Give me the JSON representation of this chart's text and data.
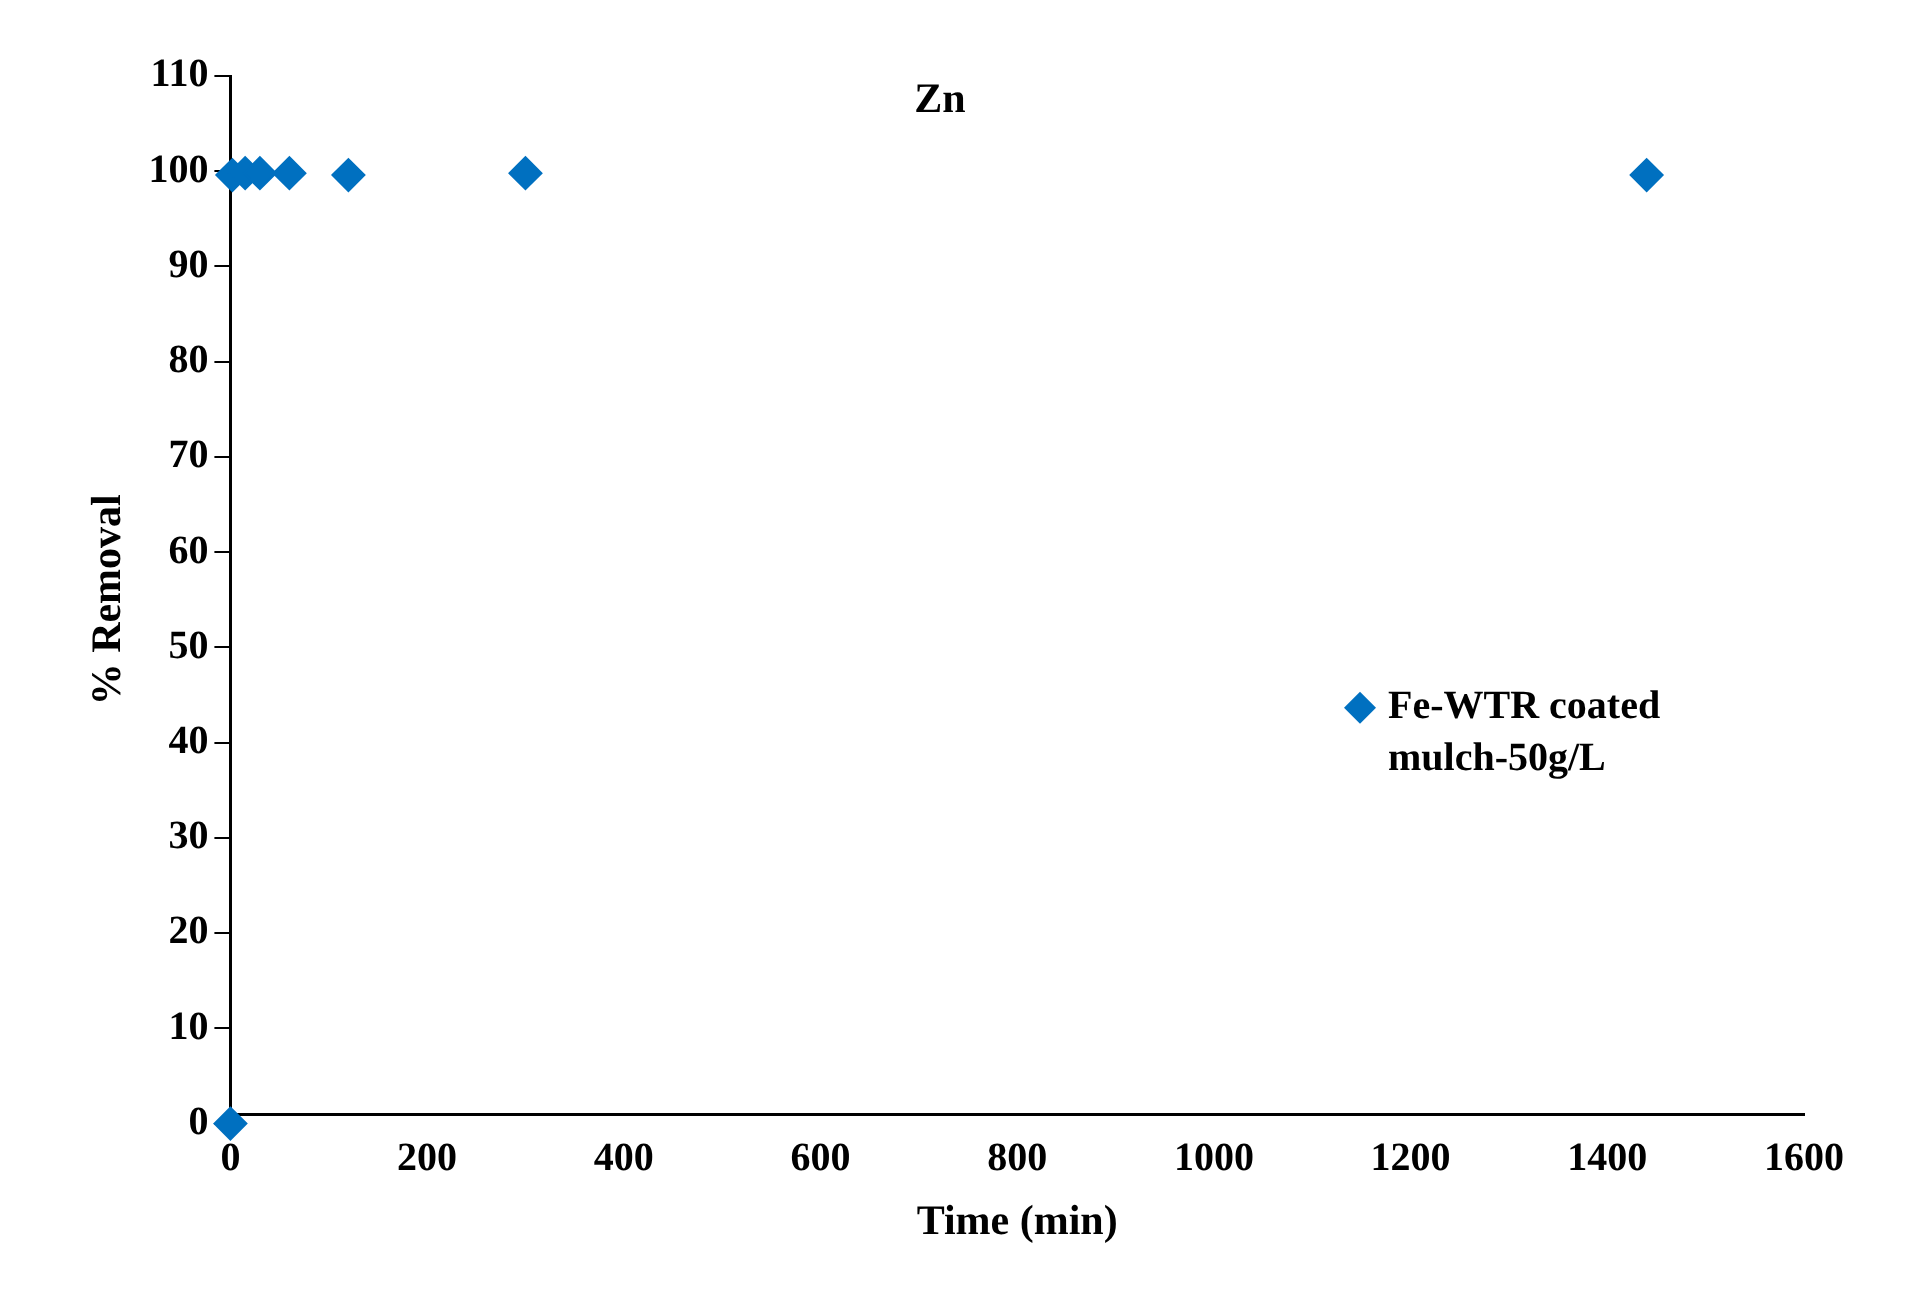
{
  "chart_data": {
    "type": "scatter",
    "title": "Zn",
    "xlabel": "Time (min)",
    "ylabel": "% Removal",
    "x": [
      0,
      2,
      15,
      30,
      60,
      120,
      300,
      1440
    ],
    "series": [
      {
        "name": "Fe-WTR coated mulch-50g/L",
        "color": "#0070c0",
        "values": [
          0,
          99.6,
          99.8,
          99.8,
          99.8,
          99.6,
          99.8,
          99.6
        ]
      }
    ],
    "xlim": [
      0,
      1600
    ],
    "xticks": [
      0,
      200,
      400,
      600,
      800,
      1000,
      1200,
      1400,
      1600
    ],
    "ylim": [
      0,
      110
    ],
    "yticks": [
      0,
      10,
      20,
      30,
      40,
      50,
      60,
      70,
      80,
      90,
      100,
      110
    ],
    "grid": false,
    "legend": "right",
    "marker": "diamond"
  }
}
